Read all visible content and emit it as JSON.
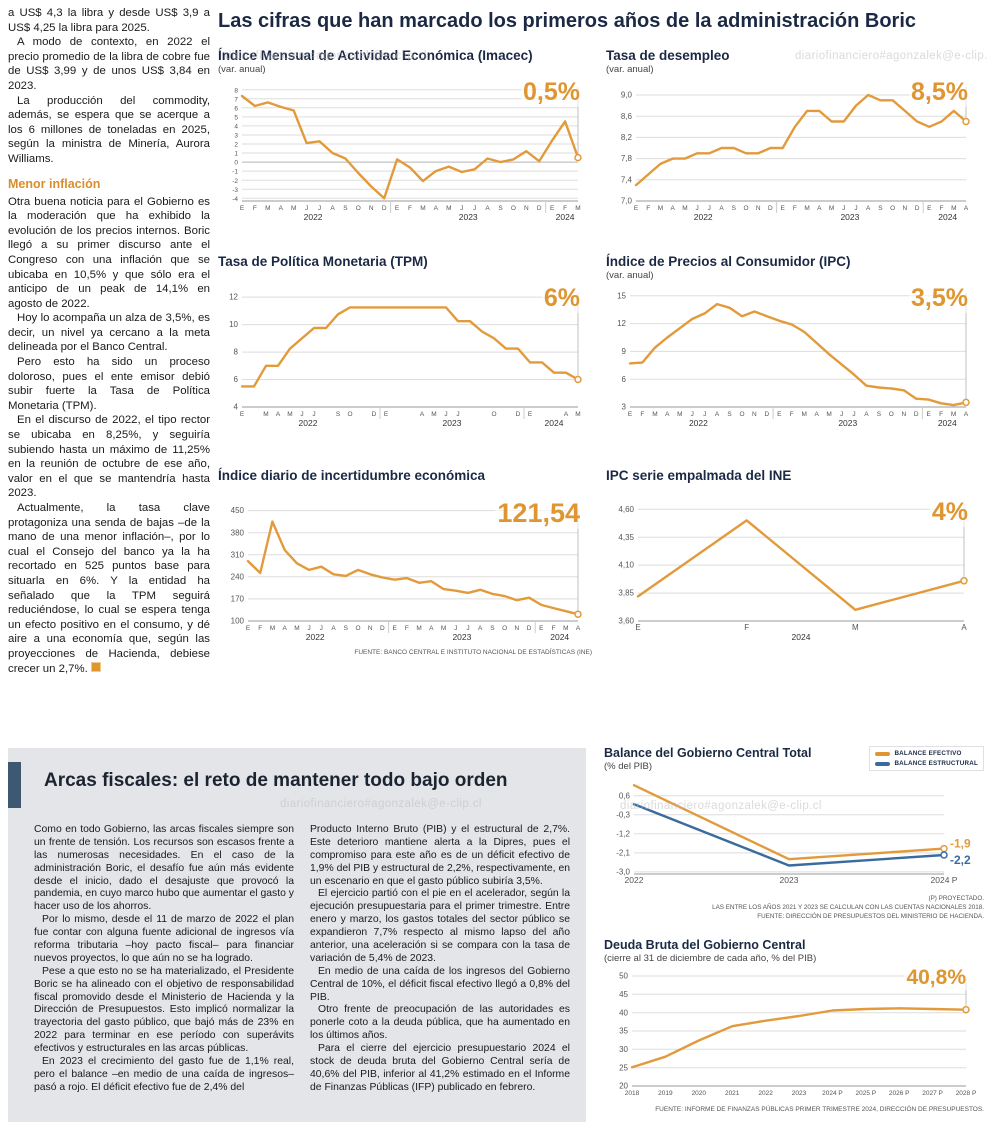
{
  "watermark": "diariofinanciero#agonzalek@e-clip.cl",
  "colors": {
    "accent": "#DF9530",
    "line": "#E29A3B",
    "blue": "#3A6B9F",
    "heading": "#1B2944",
    "box_bg": "#E3E5E8",
    "bar": "#3E5872"
  },
  "left_article": {
    "paragraphs": [
      "a US$ 4,3 la libra y desde US$ 3,9 a US$ 4,25 la libra para 2025.",
      "A modo de contexto, en 2022 el precio promedio de la libra de cobre fue de US$ 3,99 y de unos US$ 3,84 en 2023.",
      "La producción del commodity, además, se espera que se acerque a los 6 millones de toneladas en 2025, según la ministra de Minería, Aurora Williams."
    ],
    "heading": "Menor inflación",
    "paragraphs2": [
      "Otra buena noticia para el Gobierno es la moderación que ha exhibido la evolución de los precios internos. Boric llegó a su primer discurso ante el Congreso con una inflación que se ubicaba en 10,5% y que sólo era el anticipo de un peak de 14,1% en agosto de 2022.",
      "Hoy lo acompaña un alza de 3,5%, es decir, un nivel ya cercano a la meta delineada por el Banco Central.",
      "Pero esto ha sido un proceso doloroso, pues el ente emisor debió subir fuerte la Tasa de Política Monetaria (TPM).",
      "En el discurso de 2022, el tipo rector se ubicaba en 8,25%, y seguiría subiendo hasta un máximo de 11,25% en la reunión de octubre de ese año, valor en el que se mantendría hasta 2023.",
      "Actualmente, la tasa clave protagoniza una senda de bajas –de la mano de una menor inflación–, por lo cual el Consejo del banco ya la ha recortado en 525 puntos base para situarla en 6%. Y la entidad ha señalado que la TPM seguirá reduciéndose, lo cual se espera tenga un efecto positivo en el consumo, y dé aire a una economía que, según las proyecciones de Hacienda, debiese crecer un 2,7%."
    ]
  },
  "main": {
    "title": "Las cifras que han marcado los primeros años de la administración Boric"
  },
  "fiscal": {
    "heading": "Arcas fiscales: el reto de mantener todo bajo orden",
    "col1": [
      "Como en todo Gobierno, las arcas fiscales siempre son un frente de tensión. Los recursos son escasos frente a las numerosas necesidades. En el caso de la administración Boric, el desafío fue aún más evidente desde el inicio, dado el desajuste que provocó la pandemia, en cuyo marco hubo que aumentar el gasto y hacer uso de los ahorros.",
      "Por lo mismo, desde el 11 de marzo de 2022 el plan fue contar con alguna fuente adicional de ingresos vía reforma tributaria –hoy pacto fiscal– para financiar nuevos proyectos, lo que aún no se ha logrado.",
      "Pese a que esto no se ha materializado, el Presidente Boric se ha alineado con el objetivo de responsabilidad fiscal promovido desde el Ministerio de Hacienda y la Dirección de Presupuestos. Esto implicó normalizar la trayectoria del gasto público, que bajó más de 23% en 2022 para terminar en ese período con superávits efectivos y estructurales en las arcas públicas.",
      "En 2023 el crecimiento del gasto fue de 1,1% real, pero el balance –en medio de una caída de ingresos– pasó a rojo. El déficit efectivo fue de 2,4% del"
    ],
    "col2": [
      "Producto Interno Bruto (PIB) y el estructural de 2,7%. Este deterioro mantiene alerta a la Dipres, pues el compromiso para este año es de un déficit efectivo de 1,9% del PIB y estructural de 2,2%, respectivamente, en un escenario en que el gasto público subiría 3,5%.",
      "El ejercicio partió con el pie en el acelerador, según la ejecución presupuestaria para el primer trimestre. Entre enero y marzo, los gastos totales del sector público se expandieron 7,7% respecto al mismo lapso del año anterior, una aceleración si se compara con la tasa de variación de 5,4% de 2023.",
      "En medio de una caída de los ingresos del Gobierno Central de 10%, el déficit fiscal efectivo llegó a 0,8% del PIB.",
      "Otro frente de preocupación de las autoridades es ponerle coto a la deuda pública, que ha aumentado en los últimos años.",
      "Para el cierre del ejercicio presupuestario 2024 el stock de deuda bruta del Gobierno Central sería de 40,6% del PIB, inferior al 41,2% estimado en el Informe de Finanzas Públicas (IFP) publicado en febrero."
    ]
  },
  "chart_data": [
    {
      "type": "line",
      "title": "Índice Mensual de Actividad Económica (Imacec)",
      "subtitle": "(var. anual)",
      "value_label": "0,5%",
      "ylim": [
        -4.3,
        8.3
      ],
      "ytick_font": 6.5,
      "yticks": [
        [
          8,
          "8"
        ],
        [
          7,
          "7"
        ],
        [
          6,
          "6"
        ],
        [
          5,
          "5"
        ],
        [
          4,
          "4"
        ],
        [
          3,
          "3"
        ],
        [
          2,
          "2"
        ],
        [
          1,
          "1"
        ],
        [
          0,
          "0"
        ],
        [
          -1,
          "-1"
        ],
        [
          -2,
          "-2"
        ],
        [
          -3,
          "-3"
        ],
        [
          -4,
          "-4"
        ]
      ],
      "xlabels": [
        "E",
        "F",
        "M",
        "A",
        "M",
        "J",
        "J",
        "A",
        "S",
        "O",
        "N",
        "D",
        "E",
        "F",
        "M",
        "A",
        "M",
        "J",
        "J",
        "A",
        "S",
        "O",
        "N",
        "D",
        "E",
        "F",
        "M"
      ],
      "years": [
        {
          "label": "2022",
          "from": 0,
          "to": 11
        },
        {
          "label": "2023",
          "from": 12,
          "to": 23
        },
        {
          "label": "2024",
          "from": 24,
          "to": 26
        }
      ],
      "end_line": true,
      "pad": [
        24,
        14,
        10,
        26
      ],
      "series": [
        {
          "name": "Imacec",
          "color": "#E29A3B",
          "values": [
            7.3,
            6.2,
            6.6,
            6.1,
            5.7,
            2.1,
            2.3,
            1.0,
            0.4,
            -1.2,
            -2.7,
            -4.0,
            0.3,
            -0.6,
            -2.1,
            -1.0,
            -0.5,
            -1.1,
            -0.8,
            0.4,
            0.0,
            0.3,
            1.2,
            0.1,
            2.4,
            4.5,
            0.5
          ]
        }
      ]
    },
    {
      "type": "line",
      "title": "Tasa de desempleo",
      "subtitle": "(var. anual)",
      "value_label": "8,5%",
      "ylim": [
        7.0,
        9.15
      ],
      "yticks": [
        [
          9.0,
          "9,0"
        ],
        [
          8.6,
          "8,6"
        ],
        [
          8.2,
          "8,2"
        ],
        [
          7.8,
          "7,8"
        ],
        [
          7.4,
          "7,4"
        ],
        [
          7.0,
          "7,0"
        ]
      ],
      "xlabels": [
        "E",
        "F",
        "M",
        "A",
        "M",
        "J",
        "J",
        "A",
        "S",
        "O",
        "N",
        "D",
        "E",
        "F",
        "M",
        "A",
        "M",
        "J",
        "J",
        "A",
        "S",
        "O",
        "N",
        "D",
        "E",
        "F",
        "M",
        "A"
      ],
      "years": [
        {
          "label": "2022",
          "from": 0,
          "to": 11
        },
        {
          "label": "2023",
          "from": 12,
          "to": 23
        },
        {
          "label": "2024",
          "from": 24,
          "to": 27
        }
      ],
      "end_line": true,
      "pad": [
        30,
        14,
        10,
        26
      ],
      "series": [
        {
          "name": "Tasa de desempleo",
          "color": "#E29A3B",
          "values": [
            7.3,
            7.5,
            7.7,
            7.8,
            7.8,
            7.9,
            7.9,
            8.0,
            8.0,
            7.9,
            7.9,
            8.0,
            8.0,
            8.4,
            8.7,
            8.7,
            8.5,
            8.5,
            8.8,
            9.0,
            8.9,
            8.9,
            8.7,
            8.5,
            8.4,
            8.5,
            8.7,
            8.5
          ]
        }
      ]
    },
    {
      "type": "line",
      "title": "Tasa de Política Monetaria (TPM)",
      "subtitle": "",
      "value_label": "6%",
      "ylim": [
        4,
        12.3
      ],
      "yticks": [
        [
          12,
          "12"
        ],
        [
          10,
          "10"
        ],
        [
          8,
          "8"
        ],
        [
          6,
          "6"
        ],
        [
          4,
          "4"
        ]
      ],
      "xlabels": [
        "E",
        "",
        "M",
        "A",
        "M",
        "J",
        "J",
        "",
        "S",
        "O",
        "",
        "D",
        "E",
        "",
        "",
        "A",
        "M",
        "J",
        "J",
        "",
        "",
        "O",
        "",
        "D",
        "E",
        "",
        "",
        "A",
        "M"
      ],
      "years": [
        {
          "label": "2022",
          "from": 0,
          "to": 11
        },
        {
          "label": "2023",
          "from": 12,
          "to": 23
        },
        {
          "label": "2024",
          "from": 24,
          "to": 28
        }
      ],
      "end_line": true,
      "pad": [
        24,
        14,
        10,
        26
      ],
      "series": [
        {
          "name": "TPM",
          "color": "#E29A3B",
          "values": [
            5.5,
            5.5,
            7.0,
            7.0,
            8.25,
            9.0,
            9.75,
            9.75,
            10.75,
            11.25,
            11.25,
            11.25,
            11.25,
            11.25,
            11.25,
            11.25,
            11.25,
            11.25,
            10.25,
            10.25,
            9.5,
            9.0,
            8.25,
            8.25,
            7.25,
            7.25,
            6.5,
            6.5,
            6.0
          ]
        }
      ]
    },
    {
      "type": "line",
      "title": "Índice de Precios al Consumidor (IPC)",
      "subtitle": "(var. anual)",
      "value_label": "3,5%",
      "ylim": [
        3,
        15.3
      ],
      "yticks": [
        [
          15,
          "15"
        ],
        [
          12,
          "12"
        ],
        [
          9,
          "9"
        ],
        [
          6,
          "6"
        ],
        [
          3,
          "3"
        ]
      ],
      "xlabels": [
        "E",
        "F",
        "M",
        "A",
        "M",
        "J",
        "J",
        "A",
        "S",
        "O",
        "N",
        "D",
        "E",
        "F",
        "M",
        "A",
        "M",
        "J",
        "J",
        "A",
        "S",
        "O",
        "N",
        "D",
        "E",
        "F",
        "M",
        "A"
      ],
      "years": [
        {
          "label": "2022",
          "from": 0,
          "to": 11
        },
        {
          "label": "2023",
          "from": 12,
          "to": 23
        },
        {
          "label": "2024",
          "from": 24,
          "to": 27
        }
      ],
      "end_line": true,
      "pad": [
        24,
        14,
        10,
        26
      ],
      "series": [
        {
          "name": "IPC",
          "color": "#E29A3B",
          "values": [
            7.7,
            7.8,
            9.4,
            10.5,
            11.5,
            12.5,
            13.1,
            14.1,
            13.7,
            12.8,
            13.3,
            12.8,
            12.3,
            11.9,
            11.1,
            9.9,
            8.7,
            7.6,
            6.5,
            5.3,
            5.1,
            5.0,
            4.8,
            3.9,
            3.8,
            3.4,
            3.2,
            3.5
          ]
        }
      ]
    },
    {
      "type": "line",
      "title": "Índice diario de incertidumbre económica",
      "subtitle": "",
      "value_label": "121,54",
      "source": "FUENTE: BANCO CENTRAL E INSTITUTO NACIONAL DE ESTADÍSTICAS (INE)",
      "ylim": [
        100,
        455
      ],
      "yticks": [
        [
          450,
          "450"
        ],
        [
          380,
          "380"
        ],
        [
          310,
          "310"
        ],
        [
          240,
          "240"
        ],
        [
          170,
          "170"
        ],
        [
          100,
          "100"
        ]
      ],
      "xlabels": [
        "E",
        "F",
        "M",
        "A",
        "M",
        "J",
        "J",
        "A",
        "S",
        "O",
        "N",
        "D",
        "E",
        "F",
        "M",
        "A",
        "M",
        "J",
        "J",
        "A",
        "S",
        "O",
        "N",
        "D",
        "E",
        "F",
        "M",
        "A"
      ],
      "years": [
        {
          "label": "2022",
          "from": 0,
          "to": 11
        },
        {
          "label": "2023",
          "from": 12,
          "to": 23
        },
        {
          "label": "2024",
          "from": 24,
          "to": 27
        }
      ],
      "end_line": true,
      "pad": [
        30,
        14,
        12,
        26
      ],
      "series": [
        {
          "name": "Incertidumbre económica",
          "color": "#E29A3B",
          "values": [
            290,
            252,
            415,
            325,
            283,
            262,
            272,
            248,
            243,
            262,
            248,
            238,
            231,
            236,
            221,
            226,
            201,
            196,
            189,
            199,
            186,
            179,
            166,
            174,
            151,
            141,
            131,
            121.54
          ]
        }
      ]
    },
    {
      "type": "line",
      "title": "IPC serie empalmada del INE",
      "subtitle": "",
      "value_label": "4%",
      "ylim": [
        3.6,
        4.62
      ],
      "yticks": [
        [
          4.6,
          "4,60"
        ],
        [
          4.35,
          "4,35"
        ],
        [
          4.1,
          "4,10"
        ],
        [
          3.85,
          "3,85"
        ],
        [
          3.6,
          "3,60"
        ]
      ],
      "xlabels": [
        "E",
        "F",
        "M",
        "A"
      ],
      "xtick_font": 8,
      "years": [
        {
          "label": "2024",
          "from": 0,
          "to": 3
        }
      ],
      "end_line": true,
      "pad": [
        32,
        16,
        10,
        26
      ],
      "series": [
        {
          "name": "IPC serie empalmada",
          "color": "#E29A3B",
          "values": [
            3.82,
            4.5,
            3.7,
            3.96
          ]
        }
      ]
    },
    {
      "type": "line",
      "title": "Balance del Gobierno Central Total",
      "subtitle": "(% del PIB)",
      "legend": [
        "BALANCE EFECTIVO",
        "BALANCE ESTRUCTURAL"
      ],
      "notes": [
        "(P) PROYECTADO.",
        "LAS ENTRE LOS AÑOS 2021 Y 2023 SE CALCULAN CON LAS CUENTAS NACIONALES 2018.",
        "FUENTE: DIRECCIÓN DE PRESUPUESTOS DEL MINISTERIO DE HACIENDA."
      ],
      "ylim": [
        -3.1,
        1.25
      ],
      "yticks": [
        [
          0.6,
          "0,6"
        ],
        [
          -0.3,
          "-0,3"
        ],
        [
          -1.2,
          "-1,2"
        ],
        [
          -2.1,
          "-2,1"
        ],
        [
          -3.0,
          "-3,0"
        ]
      ],
      "xlabels": [
        "2022",
        "2023",
        "2024 P"
      ],
      "xtick_font": 8.5,
      "end_line": false,
      "pad": [
        30,
        40,
        8,
        18
      ],
      "series": [
        {
          "name": "Balance efectivo",
          "color": "#E29A3B",
          "end_label": "-1,9",
          "label_dy": -1,
          "values": [
            1.1,
            -2.4,
            -1.9
          ]
        },
        {
          "name": "Balance estructural",
          "color": "#3A6B9F",
          "end_label": "-2,2",
          "label_dy": 9,
          "values": [
            0.2,
            -2.7,
            -2.2
          ]
        }
      ]
    },
    {
      "type": "line",
      "title": "Deuda Bruta del Gobierno Central",
      "subtitle": "(cierre al 31 de diciembre de cada año, % del PIB)",
      "value_label": "40,8%",
      "source": "FUENTE: INFORME DE FINANZAS PÚBLICAS PRIMER TRIMESTRE 2024, DIRECCIÓN DE PRESUPUESTOS.",
      "ylim": [
        20,
        50
      ],
      "yticks": [
        [
          50,
          "50"
        ],
        [
          45,
          "45"
        ],
        [
          40,
          "40"
        ],
        [
          35,
          "35"
        ],
        [
          30,
          "30"
        ],
        [
          25,
          "25"
        ],
        [
          20,
          "20"
        ]
      ],
      "xlabels": [
        "2018",
        "2019",
        "2020",
        "2021",
        "2022",
        "2023",
        "2024 P",
        "2025 P",
        "2026 P",
        "2027 P",
        "2028 P"
      ],
      "xtick_font": 6.5,
      "end_line": true,
      "pad": [
        28,
        18,
        10,
        18
      ],
      "series": [
        {
          "name": "Deuda bruta",
          "color": "#E29A3B",
          "values": [
            25.1,
            28.0,
            32.4,
            36.3,
            37.8,
            39.1,
            40.6,
            41.0,
            41.2,
            41.0,
            40.8
          ]
        }
      ]
    }
  ]
}
